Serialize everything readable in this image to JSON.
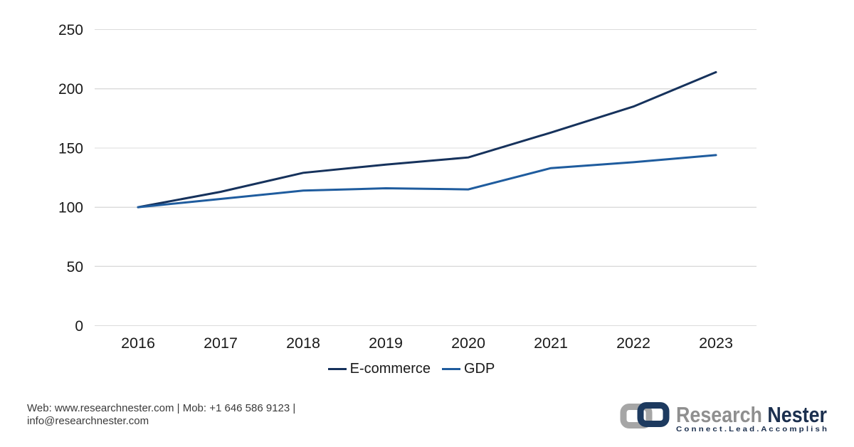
{
  "chart_data": {
    "type": "line",
    "title": "",
    "xlabel": "",
    "ylabel": "",
    "categories": [
      "2016",
      "2017",
      "2018",
      "2019",
      "2020",
      "2021",
      "2022",
      "2023"
    ],
    "series": [
      {
        "name": "E-commerce",
        "color": "#16325c",
        "values": [
          100,
          113,
          129,
          136,
          142,
          163,
          185,
          214
        ]
      },
      {
        "name": "GDP",
        "color": "#1f5c9e",
        "values": [
          100,
          107,
          114,
          116,
          115,
          133,
          138,
          144
        ]
      }
    ],
    "ylim": [
      0,
      250
    ],
    "ytick_step": 50,
    "yticks": [
      0,
      50,
      100,
      150,
      200,
      250
    ],
    "grid": "horizontal",
    "legend_position": "bottom"
  },
  "colors": {
    "gridline": "#dcdcdc",
    "axis_text": "#1a1a1a",
    "background": "#ffffff"
  },
  "footer": {
    "contact_line1": "Web: www.researchnester.com | Mob: +1 646 586 9123 |",
    "contact_line2": "info@researchnester.com",
    "logo": {
      "brand_part1": "Research",
      "brand_part2": "Nester",
      "tagline": "C o n n e c t .   L e a d .   A c c o m p l i s h",
      "gray": "#a6a6a6",
      "navy": "#1d3a5f",
      "brand_gray": "#8f8f8f",
      "brand_navy": "#1b2f4e"
    }
  }
}
